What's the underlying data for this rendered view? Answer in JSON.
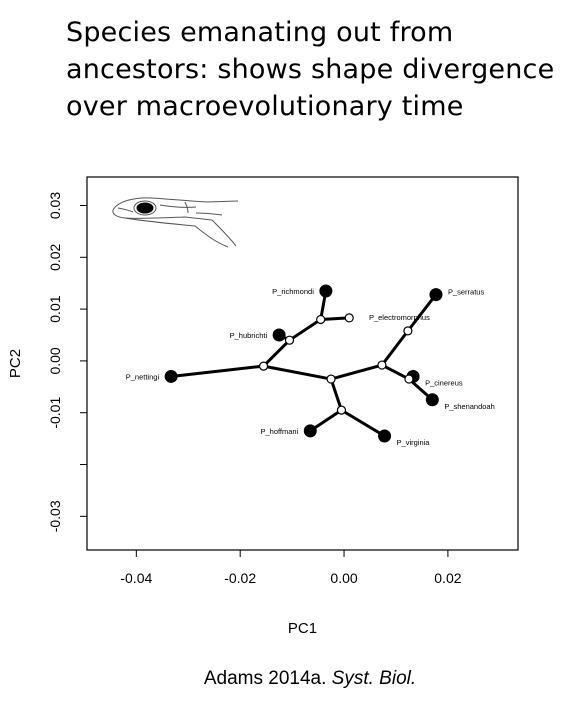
{
  "title_lines": [
    "Species emanating out from",
    "ancestors: shows shape divergence",
    "over macroevolutionary time"
  ],
  "citation": {
    "prefix": "Adams 2014a.",
    "journal": "Syst.",
    "journal2": "Biol."
  },
  "chart_data": {
    "type": "scatter",
    "title": "",
    "xlabel": "PC1",
    "ylabel": "PC2",
    "xlim": [
      -0.0495,
      0.0335
    ],
    "ylim": [
      -0.0365,
      0.0355
    ],
    "x_ticks": [
      {
        "value": -0.04,
        "label": "-0.04"
      },
      {
        "value": -0.02,
        "label": "-0.02"
      },
      {
        "value": 0.0,
        "label": "0.00"
      },
      {
        "value": 0.02,
        "label": "0.02"
      }
    ],
    "y_ticks": [
      {
        "value": 0.03,
        "label": "0.03"
      },
      {
        "value": 0.02,
        "label": "0.02"
      },
      {
        "value": 0.01,
        "label": "0.01"
      },
      {
        "value": 0.0,
        "label": "0.00"
      },
      {
        "value": -0.01,
        "label": "-0.01"
      },
      {
        "value": -0.02,
        "label": ""
      },
      {
        "value": -0.03,
        "label": "-0.03"
      }
    ],
    "species": [
      {
        "name": "P_richmondi",
        "x": -0.0035,
        "y": 0.0135,
        "label_pos": "left"
      },
      {
        "name": "P_hubrichti",
        "x": -0.0125,
        "y": 0.005,
        "label_pos": "left"
      },
      {
        "name": "P_nettingi",
        "x": -0.0333,
        "y": -0.003,
        "label_pos": "left"
      },
      {
        "name": "P_hoffmani",
        "x": -0.0065,
        "y": -0.0135,
        "label_pos": "left"
      },
      {
        "name": "P_virginia",
        "x": 0.0078,
        "y": -0.0145,
        "label_pos": "right-below"
      },
      {
        "name": "P_serratus",
        "x": 0.0177,
        "y": 0.0128,
        "label_pos": "right"
      },
      {
        "name": "P_electromorphus",
        "x": 0.001,
        "y": 0.0083,
        "label_pos": "none"
      },
      {
        "name": "P_cinereus",
        "x": 0.0133,
        "y": -0.003,
        "label_pos": "right-below"
      },
      {
        "name": "P_shenandoah",
        "x": 0.017,
        "y": -0.0075,
        "label_pos": "right-below"
      }
    ],
    "extra_labels": [
      {
        "text": "P_electromorphus",
        "x": 0.0048,
        "y": 0.0083
      }
    ],
    "ancestors": [
      {
        "id": "A1",
        "x": -0.0155,
        "y": -0.001
      },
      {
        "id": "A2",
        "x": -0.0105,
        "y": 0.004
      },
      {
        "id": "A3",
        "x": -0.0045,
        "y": 0.008
      },
      {
        "id": "A4",
        "x": -0.0025,
        "y": -0.0035
      },
      {
        "id": "A5",
        "x": -0.0005,
        "y": -0.0095
      },
      {
        "id": "A6",
        "x": 0.0073,
        "y": -0.0008
      },
      {
        "id": "A7",
        "x": 0.0123,
        "y": 0.0058
      },
      {
        "id": "A8",
        "x": 0.0125,
        "y": -0.0035
      }
    ],
    "branches": [
      [
        "A1",
        "P_nettingi"
      ],
      [
        "A1",
        "A2"
      ],
      [
        "A2",
        "P_hubrichti"
      ],
      [
        "A2",
        "A3"
      ],
      [
        "A3",
        "P_richmondi"
      ],
      [
        "A3",
        "P_electromorphus"
      ],
      [
        "A1",
        "A4"
      ],
      [
        "A4",
        "A5"
      ],
      [
        "A5",
        "P_hoffmani"
      ],
      [
        "A5",
        "P_virginia"
      ],
      [
        "A4",
        "A6"
      ],
      [
        "A6",
        "A7"
      ],
      [
        "A7",
        "P_serratus"
      ],
      [
        "A6",
        "A8"
      ],
      [
        "A8",
        "P_cinereus"
      ],
      [
        "A8",
        "P_shenandoah"
      ]
    ]
  },
  "inset_icon": "salamander-head-outline"
}
